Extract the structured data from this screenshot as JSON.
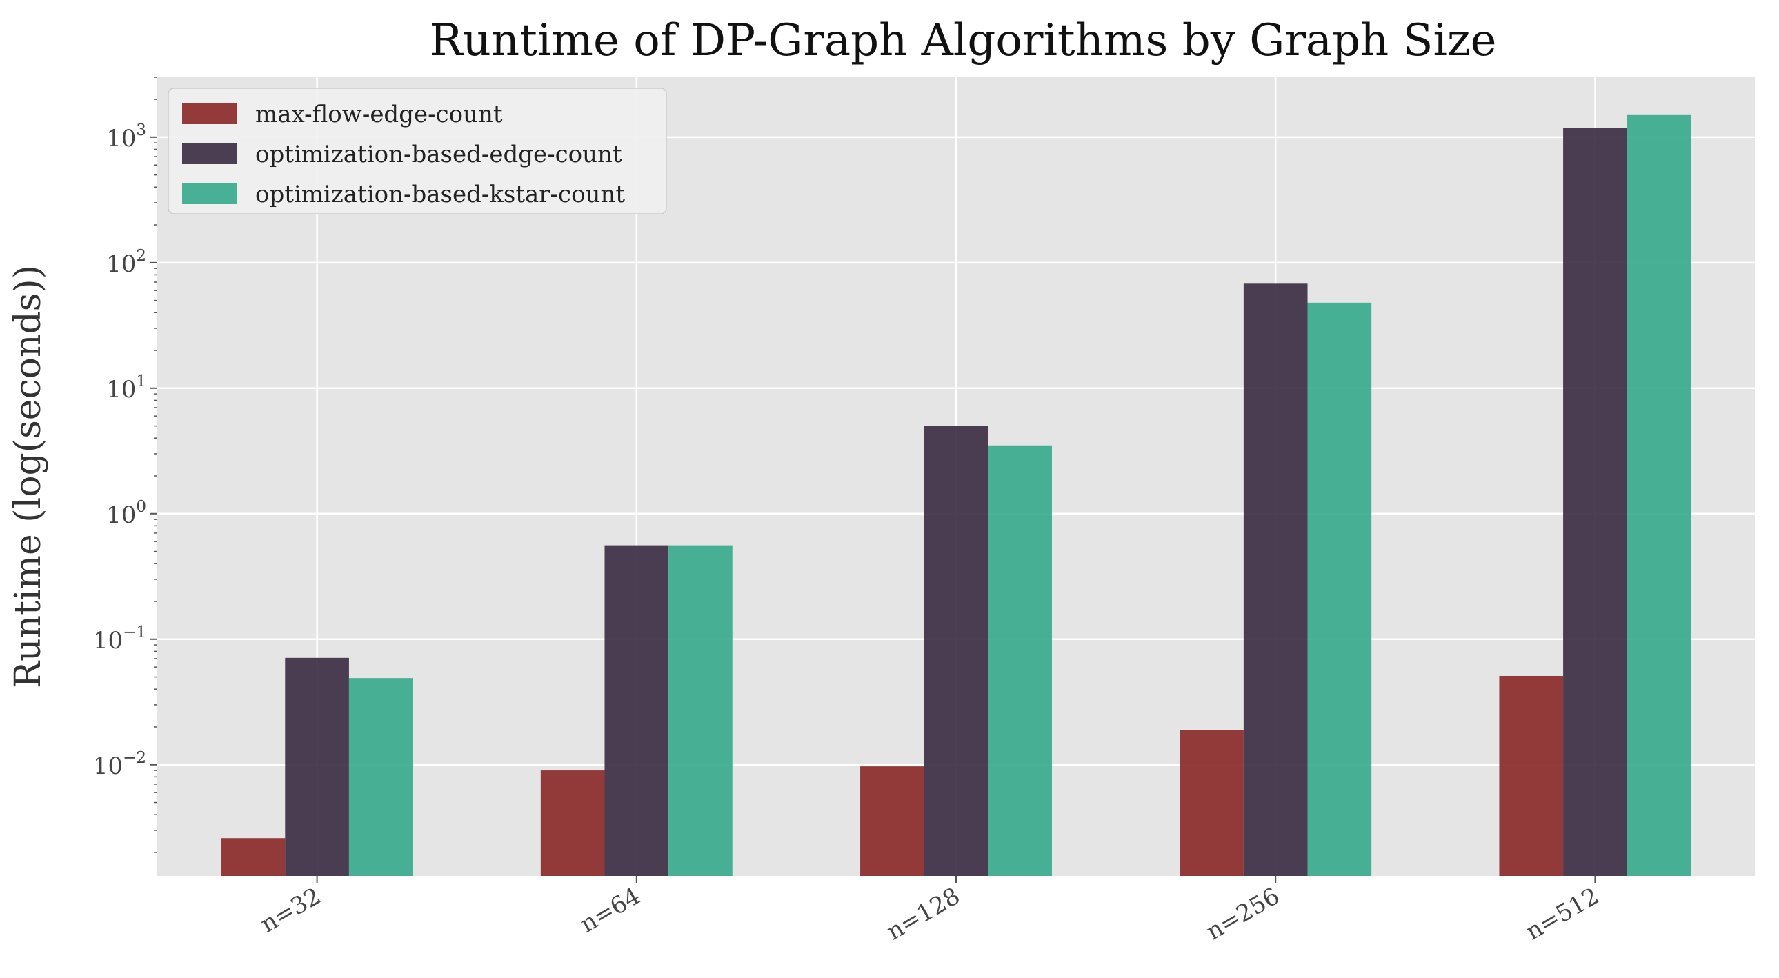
{
  "chart_data": {
    "type": "bar",
    "title": "Runtime of DP-Graph Algorithms by Graph Size",
    "xlabel": "",
    "ylabel": "Runtime (log(seconds))",
    "yscale": "log",
    "ylim": [
      0.0013,
      3000
    ],
    "ytick_values": [
      0.01,
      0.1,
      1,
      10,
      100,
      1000
    ],
    "ytick_labels": [
      {
        "base": "10",
        "exp": "−2"
      },
      {
        "base": "10",
        "exp": "−1"
      },
      {
        "base": "10",
        "exp": "0"
      },
      {
        "base": "10",
        "exp": "1"
      },
      {
        "base": "10",
        "exp": "2"
      },
      {
        "base": "10",
        "exp": "3"
      }
    ],
    "categories": [
      "n=32",
      "n=64",
      "n=128",
      "n=256",
      "n=512"
    ],
    "grid": true,
    "legend_position": "top-left",
    "background": "#e5e5e5",
    "series": [
      {
        "name": "max-flow-edge-count",
        "color": "#8b2b2b",
        "values": [
          0.0026,
          0.009,
          0.0097,
          0.019,
          0.051
        ]
      },
      {
        "name": "optimization-based-edge-count",
        "color": "#3d2e44",
        "values": [
          0.071,
          0.56,
          5.0,
          68,
          1180
        ]
      },
      {
        "name": "optimization-based-kstar-count",
        "color": "#3aaa8c",
        "values": [
          0.049,
          0.56,
          3.5,
          48,
          1500
        ]
      }
    ]
  }
}
